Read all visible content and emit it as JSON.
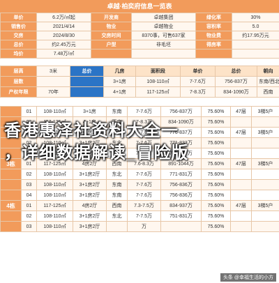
{
  "title": "卓越·柏奕府信息一览表",
  "info_rows": [
    [
      "单价",
      "6.2万/㎡起",
      "开发商",
      "卓越集团",
      "绿化率",
      "30%"
    ],
    [
      "销售价",
      "2021/4/14",
      "物业",
      "卓越物业",
      "容积率",
      "5.0"
    ],
    [
      "交房",
      "2024/8/30",
      "交房时间",
      "8370事，可售637家",
      "物业费",
      "约17.95万元"
    ],
    [
      "总价",
      "约2.45万元",
      "户型",
      "非毛坯",
      "得房率",
      ""
    ],
    [
      "均价",
      "7.48万/㎡",
      "",
      "",
      "",
      ""
    ]
  ],
  "mid_block": {
    "rows": [
      [
        "层高",
        "3米",
        "总价",
        "几房",
        "面积段",
        "单价",
        "总价",
        "朝向"
      ],
      [
        "层数",
        "",
        "",
        "3+1房",
        "108-110㎡",
        "7-7.6万",
        "756-837万",
        "东南/西北"
      ],
      [
        "产权年限",
        "70年",
        "",
        "4+1房",
        "117-125㎡",
        "7-8.3万",
        "834-1090万",
        "西南"
      ]
    ]
  },
  "headline": {
    "line1": "香港惠泽社资料大全一",
    "line2": "，详细数据解读_冒险版"
  },
  "units": {
    "rows": [
      [
        "",
        "01",
        "108-110㎡",
        "3+1房",
        "东南",
        "7-7.6万",
        "756-837万",
        "75.60%",
        "47层",
        "3梯5户"
      ],
      [
        "",
        "02",
        "117-125㎡",
        "4+1房",
        "西南",
        "7-8.3万",
        "834-1090万",
        "75.60%",
        "",
        ""
      ],
      [
        "2栋",
        "01",
        "108-110㎡",
        "3+1房2厅",
        "西北",
        "7-7.6万",
        "776-837万",
        "75.60%",
        "47层",
        "3梯5户"
      ],
      [
        "",
        "02",
        "108-110㎡",
        "3+1房2厅",
        "东北",
        "7-7.6万",
        "771-833万",
        "75.60%",
        "",
        ""
      ],
      [
        "",
        "03",
        "108-110㎡",
        "3+1房2厅",
        "东南",
        "7-7.6万",
        "756-837万",
        "75.60%",
        "",
        ""
      ],
      [
        "3栋",
        "01",
        "117-125㎡",
        "4房2厅",
        "西南",
        "7.6-8.3万",
        "891-1044万",
        "75.60%",
        "47层",
        "3梯5户"
      ],
      [
        "",
        "02",
        "108-110㎡",
        "3+1房2厅",
        "东北",
        "7-7.6万",
        "771-831万",
        "75.60%",
        "",
        ""
      ],
      [
        "",
        "03",
        "108-110㎡",
        "3+1房2厅",
        "东南",
        "7-7.6万",
        "756-836万",
        "75.60%",
        "",
        ""
      ],
      [
        "",
        "04",
        "108-110㎡",
        "3+1房2厅",
        "东南",
        "7-7.6万",
        "756-836万",
        "75.60%",
        "",
        ""
      ],
      [
        "4栋",
        "01",
        "117-125㎡",
        "4房2厅",
        "西南",
        "7.3-7.5万",
        "834-937万",
        "75.60%",
        "47层",
        "3梯5户"
      ],
      [
        "",
        "02",
        "108-110㎡",
        "3+1房2厅",
        "东北",
        "7-7.5万",
        "751-831万",
        "75.60%",
        "",
        ""
      ],
      [
        "",
        "03",
        "108-110㎡",
        "3+1房2厅",
        "",
        "万",
        "",
        "75.60%",
        "",
        ""
      ]
    ]
  },
  "watermark": "头条 @幸福生活的小方"
}
